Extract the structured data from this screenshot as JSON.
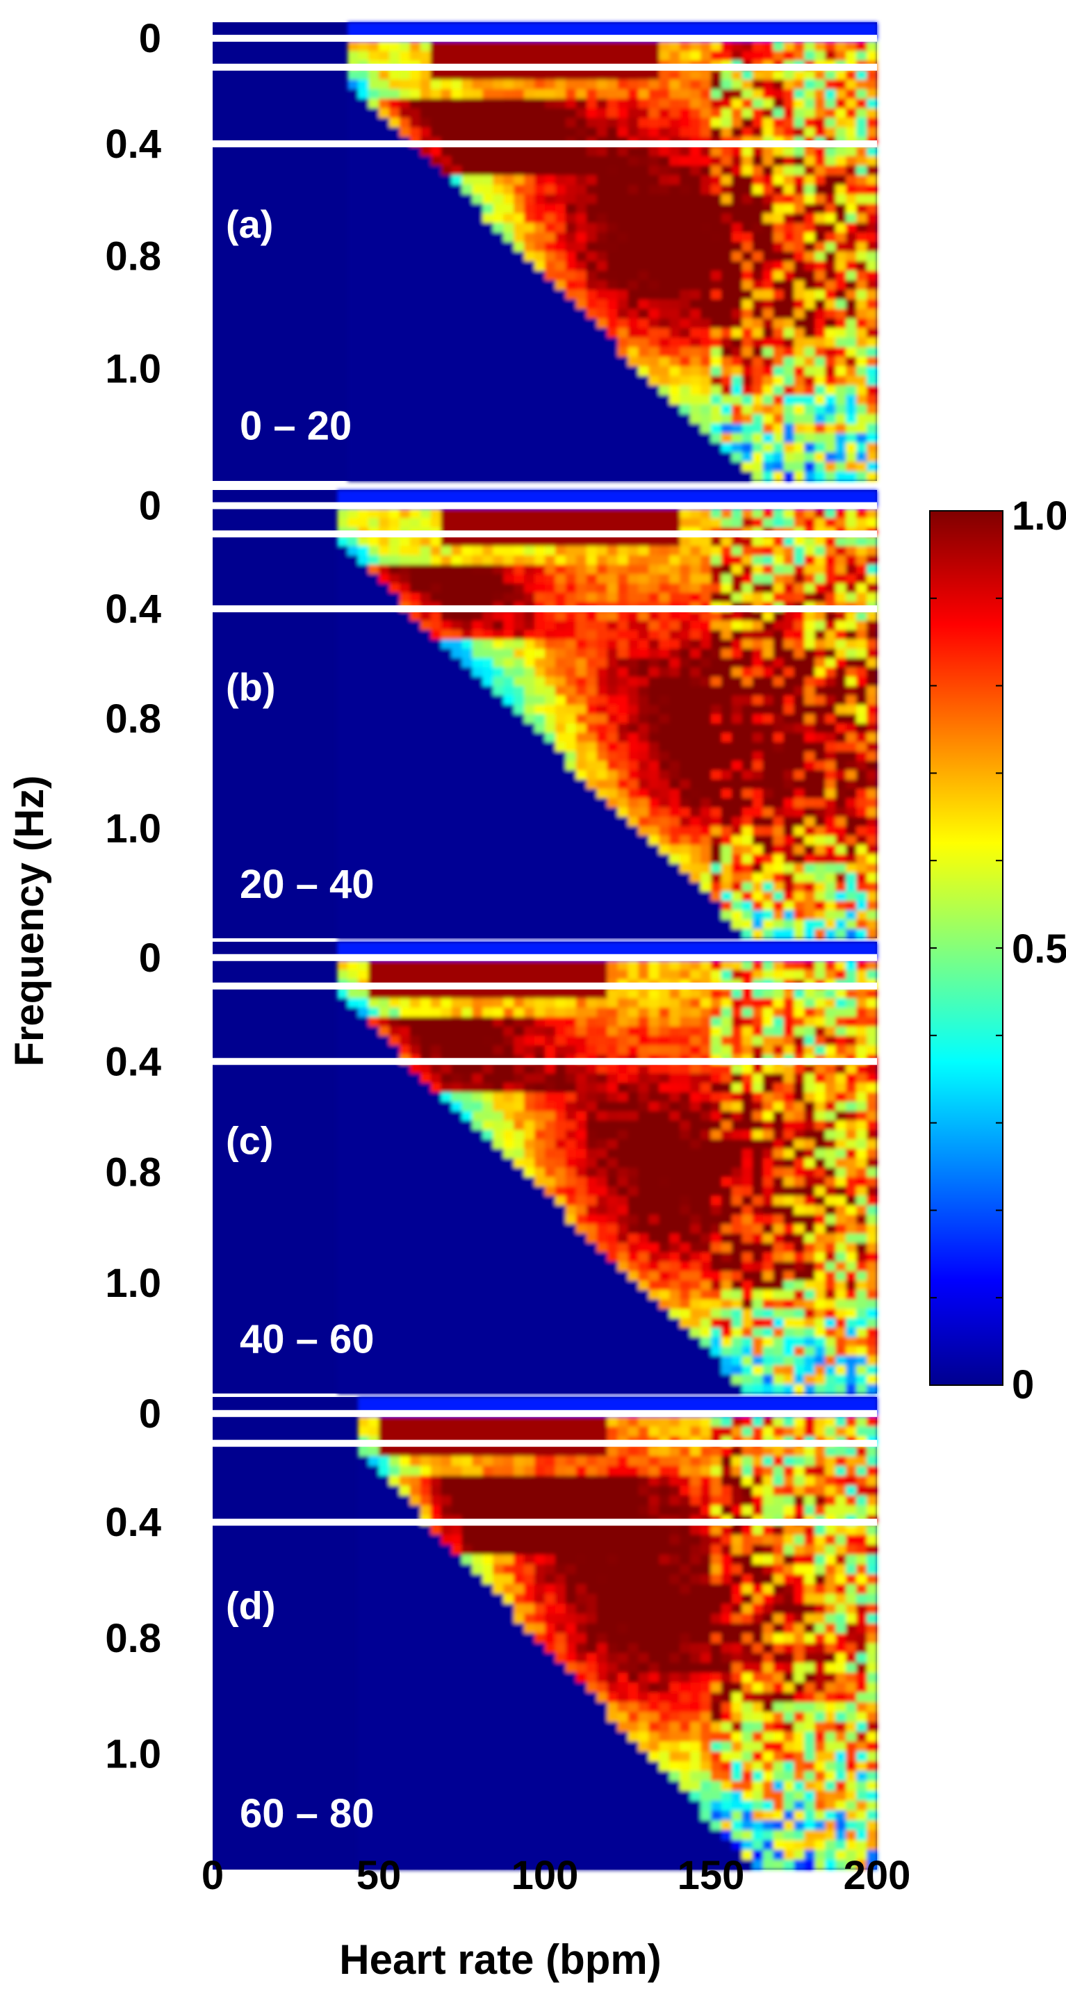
{
  "chart_data": {
    "type": "heatmap",
    "xlabel": "Heart rate (bpm)",
    "ylabel": "Frequency (Hz)",
    "x_ticks": [
      "0",
      "50",
      "100",
      "150",
      "200"
    ],
    "y_ticks": [
      "0",
      "0.4",
      "0.8",
      "1.0"
    ],
    "xlim": [
      0,
      200
    ],
    "colorbar": {
      "range": [
        0,
        1
      ],
      "ticks": [
        "1.0",
        "0.5",
        "0"
      ],
      "colormap": "jet",
      "colors": [
        "#00008f",
        "#0000ff",
        "#00ffff",
        "#ffff00",
        "#ff0000",
        "#800000"
      ]
    },
    "background_color": "#00008f",
    "line_color": "#ffffff",
    "panels": [
      {
        "label": "(a)",
        "range_label": "0 – 20",
        "start": 40,
        "band_start": 65,
        "band_end": 135,
        "hot_x": 128,
        "hot_y": 0.55,
        "hot_low_x": 72
      },
      {
        "label": "(b)",
        "range_label": "20 – 40",
        "start": 38,
        "band_start": 70,
        "band_end": 140,
        "hot_x": 150,
        "hot_y": 0.62,
        "hot_low_x": 62
      },
      {
        "label": "(c)",
        "range_label": "40 – 60",
        "start": 38,
        "band_start": 48,
        "band_end": 118,
        "hot_x": 130,
        "hot_y": 0.6,
        "hot_low_x": 62
      },
      {
        "label": "(d)",
        "range_label": "60 – 80",
        "start": 45,
        "band_start": 50,
        "band_end": 120,
        "hot_x": 120,
        "hot_y": 0.52,
        "hot_low_x": 90
      }
    ]
  }
}
